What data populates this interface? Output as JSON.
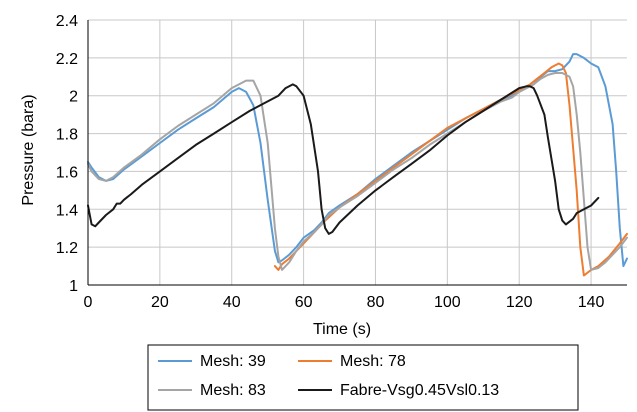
{
  "chart_data": {
    "type": "line",
    "xlabel": "Time (s)",
    "ylabel": "Pressure (bara)",
    "xlim": [
      0,
      150
    ],
    "ylim": [
      1,
      2.4
    ],
    "xticks": [
      0,
      20,
      40,
      60,
      80,
      100,
      120,
      140
    ],
    "yticks": [
      1,
      1.2,
      1.4,
      1.6,
      1.8,
      2,
      2.2,
      2.4
    ],
    "ytick_labels": [
      "1",
      "1.2",
      "1.4",
      "1.6",
      "1.8",
      "2",
      "2.2",
      "2.4"
    ],
    "grid": true,
    "legend_position": "bottom",
    "series": [
      {
        "name": "Mesh: 39",
        "color": "#5b9bd5",
        "x": [
          0,
          1,
          3,
          5,
          7,
          10,
          15,
          20,
          25,
          30,
          35,
          40,
          42,
          44,
          46,
          48,
          50,
          52,
          53,
          54,
          56,
          58,
          60,
          63,
          65,
          67,
          70,
          75,
          80,
          85,
          90,
          95,
          100,
          105,
          110,
          115,
          118,
          120,
          122,
          124,
          126,
          128,
          130,
          132,
          134,
          135,
          136,
          138,
          140,
          142,
          144,
          146,
          147,
          148,
          149,
          150
        ],
        "y": [
          1.65,
          1.62,
          1.57,
          1.55,
          1.56,
          1.61,
          1.68,
          1.75,
          1.82,
          1.88,
          1.94,
          2.02,
          2.04,
          2.02,
          1.95,
          1.75,
          1.45,
          1.18,
          1.12,
          1.13,
          1.16,
          1.2,
          1.25,
          1.29,
          1.33,
          1.38,
          1.42,
          1.48,
          1.56,
          1.63,
          1.7,
          1.76,
          1.82,
          1.88,
          1.93,
          1.98,
          2.0,
          2.02,
          2.04,
          2.06,
          2.1,
          2.13,
          2.13,
          2.14,
          2.18,
          2.22,
          2.22,
          2.2,
          2.17,
          2.15,
          2.05,
          1.85,
          1.6,
          1.3,
          1.1,
          1.14
        ]
      },
      {
        "name": "Mesh: 78",
        "color": "#ed7d31",
        "x": [
          52,
          53,
          54,
          56,
          58,
          60,
          63,
          66,
          70,
          75,
          80,
          85,
          90,
          95,
          100,
          105,
          110,
          115,
          120,
          123,
          125,
          127,
          129,
          130,
          131,
          132,
          133,
          134,
          136,
          137,
          138,
          140,
          142,
          145,
          148,
          150
        ],
        "y": [
          1.1,
          1.08,
          1.11,
          1.14,
          1.18,
          1.22,
          1.28,
          1.34,
          1.41,
          1.48,
          1.55,
          1.62,
          1.69,
          1.76,
          1.83,
          1.88,
          1.93,
          1.98,
          2.03,
          2.06,
          2.09,
          2.12,
          2.15,
          2.16,
          2.17,
          2.16,
          2.12,
          1.95,
          1.5,
          1.2,
          1.05,
          1.08,
          1.1,
          1.15,
          1.22,
          1.27
        ]
      },
      {
        "name": "Mesh: 83",
        "color": "#a5a5a5",
        "x": [
          0,
          1,
          3,
          5,
          7,
          10,
          15,
          20,
          25,
          30,
          35,
          40,
          42,
          44,
          46,
          48,
          50,
          52,
          53,
          54,
          56,
          58,
          60,
          63,
          65,
          67,
          70,
          75,
          80,
          85,
          90,
          95,
          100,
          105,
          110,
          115,
          118,
          120,
          122,
          124,
          126,
          128,
          130,
          132,
          134,
          135,
          136,
          137,
          138,
          139,
          140,
          142,
          144,
          146,
          148,
          150
        ],
        "y": [
          1.64,
          1.6,
          1.56,
          1.55,
          1.57,
          1.62,
          1.69,
          1.77,
          1.84,
          1.9,
          1.96,
          2.04,
          2.06,
          2.08,
          2.08,
          2.0,
          1.75,
          1.3,
          1.15,
          1.08,
          1.12,
          1.18,
          1.23,
          1.28,
          1.32,
          1.37,
          1.41,
          1.47,
          1.54,
          1.61,
          1.67,
          1.74,
          1.8,
          1.86,
          1.92,
          1.97,
          1.99,
          2.02,
          2.04,
          2.06,
          2.09,
          2.11,
          2.12,
          2.12,
          2.1,
          2.05,
          1.9,
          1.7,
          1.45,
          1.2,
          1.08,
          1.09,
          1.12,
          1.16,
          1.2,
          1.25
        ]
      },
      {
        "name": "Fabre-Vsg0.45Vsl0.13",
        "color": "#1a1a1a",
        "x": [
          0,
          0.5,
          1,
          2,
          3,
          5,
          7,
          8,
          9,
          10,
          12,
          15,
          20,
          25,
          30,
          35,
          40,
          45,
          50,
          53,
          55,
          57,
          58,
          60,
          62,
          64,
          65,
          66,
          67,
          68,
          70,
          75,
          80,
          85,
          90,
          95,
          100,
          105,
          110,
          115,
          120,
          122,
          123,
          124,
          125,
          127,
          128,
          130,
          131,
          132,
          133,
          135,
          136,
          138,
          140,
          142
        ],
        "y": [
          1.42,
          1.37,
          1.32,
          1.31,
          1.33,
          1.37,
          1.4,
          1.43,
          1.43,
          1.45,
          1.48,
          1.53,
          1.6,
          1.67,
          1.74,
          1.8,
          1.86,
          1.92,
          1.97,
          2.0,
          2.04,
          2.06,
          2.05,
          2.0,
          1.85,
          1.6,
          1.4,
          1.3,
          1.27,
          1.28,
          1.33,
          1.42,
          1.5,
          1.57,
          1.64,
          1.71,
          1.79,
          1.86,
          1.92,
          1.98,
          2.04,
          2.05,
          2.05,
          2.04,
          2.0,
          1.9,
          1.78,
          1.55,
          1.4,
          1.34,
          1.32,
          1.35,
          1.38,
          1.4,
          1.42,
          1.46
        ]
      }
    ]
  }
}
